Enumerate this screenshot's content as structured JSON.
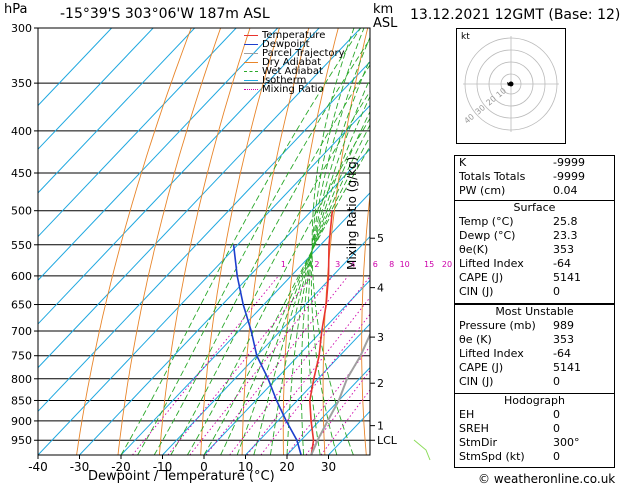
{
  "header": {
    "pressure_unit": "hPa",
    "location": "-15°39'S  303°06'W  187m  ASL",
    "height_unit_top": "km",
    "height_unit_bottom": "ASL",
    "datetime": "13.12.2021  12GMT  (Base: 12)"
  },
  "chart_data": {
    "type": "line",
    "title": "",
    "xlabel": "Dewpoint / Temperature (°C)",
    "ylabel": "hPa",
    "right_axis_label": "Mixing Ratio (g/kg)",
    "x_ticks": [
      -40,
      -30,
      -20,
      -10,
      0,
      10,
      20,
      30
    ],
    "pressure_levels": [
      300,
      350,
      400,
      450,
      500,
      550,
      600,
      650,
      700,
      750,
      800,
      850,
      900,
      950
    ],
    "km_ticks": [
      {
        "km": "1",
        "p": 912
      },
      {
        "km": "2",
        "p": 810
      },
      {
        "km": "3",
        "p": 712
      },
      {
        "km": "4",
        "p": 620
      },
      {
        "km": "5",
        "p": 540
      },
      {
        "km": "LCL",
        "p": 950
      }
    ],
    "mixing_ratio_labels": [
      "1",
      "2",
      "3",
      "4",
      "6",
      "8",
      "10",
      "15",
      "20",
      "25"
    ],
    "legend": [
      "Temperature",
      "Dewpoint",
      "Parcel Trajectory",
      "Dry Adiabat",
      "Wet Adiabat",
      "Isotherm",
      "Mixing Ratio"
    ],
    "colors": {
      "temperature": "#e8342e",
      "dewpoint": "#1d3fcc",
      "parcel": "#a0a0a0",
      "dry_adiabat": "#e8852a",
      "wet_adiabat": "#2aa82a",
      "isotherm": "#1fa8e0",
      "mixing_ratio": "#cc00aa"
    },
    "series": [
      {
        "name": "Temperature",
        "points": [
          [
            25.8,
            989
          ],
          [
            23,
            950
          ],
          [
            18,
            900
          ],
          [
            13,
            850
          ],
          [
            9,
            800
          ],
          [
            5,
            750
          ],
          [
            0,
            700
          ],
          [
            -5,
            650
          ],
          [
            -11,
            600
          ],
          [
            -18,
            550
          ],
          [
            -25,
            500
          ]
        ]
      },
      {
        "name": "Dewpoint",
        "points": [
          [
            23.3,
            989
          ],
          [
            19,
            950
          ],
          [
            12,
            900
          ],
          [
            5,
            850
          ],
          [
            -2,
            800
          ],
          [
            -10,
            750
          ],
          [
            -17,
            700
          ],
          [
            -25,
            650
          ],
          [
            -33,
            600
          ],
          [
            -41,
            550
          ]
        ]
      },
      {
        "name": "Parcel Trajectory",
        "points": [
          [
            25.8,
            989
          ],
          [
            24,
            950
          ],
          [
            22,
            900
          ],
          [
            20,
            850
          ],
          [
            17,
            800
          ],
          [
            15,
            750
          ],
          [
            12,
            700
          ],
          [
            10,
            650
          ],
          [
            8,
            600
          ],
          [
            5,
            550
          ],
          [
            2,
            500
          ],
          [
            -2,
            450
          ],
          [
            -6,
            400
          ],
          [
            -10,
            350
          ],
          [
            -14,
            310
          ]
        ]
      }
    ]
  },
  "indices": [
    {
      "label": "K",
      "value": "-9999"
    },
    {
      "label": "Totals Totals",
      "value": "-9999"
    },
    {
      "label": "PW (cm)",
      "value": "0.04"
    }
  ],
  "surface": {
    "title": "Surface",
    "rows": [
      {
        "label": "Temp (°C)",
        "value": "25.8"
      },
      {
        "label": "Dewp (°C)",
        "value": "23.3"
      },
      {
        "label": "θe(K)",
        "value": "353"
      },
      {
        "label": "Lifted Index",
        "value": "-64"
      },
      {
        "label": "CAPE (J)",
        "value": "5141"
      },
      {
        "label": "CIN (J)",
        "value": "0"
      }
    ]
  },
  "most_unstable": {
    "title": "Most Unstable",
    "rows": [
      {
        "label": "Pressure (mb)",
        "value": "989"
      },
      {
        "label": "θe (K)",
        "value": "353"
      },
      {
        "label": "Lifted Index",
        "value": "-64"
      },
      {
        "label": "CAPE (J)",
        "value": "5141"
      },
      {
        "label": "CIN (J)",
        "value": "0"
      }
    ]
  },
  "hodograph": {
    "title": "Hodograph",
    "rows": [
      {
        "label": "EH",
        "value": "0"
      },
      {
        "label": "SREH",
        "value": "0"
      },
      {
        "label": "StmDir",
        "value": "300°"
      },
      {
        "label": "StmSpd (kt)",
        "value": "0"
      }
    ]
  },
  "hodo_plot": {
    "unit": "kt",
    "ring_labels": [
      "10",
      "20",
      "30",
      "40"
    ]
  },
  "footer": {
    "copyright": "© weatheronline.co.uk"
  }
}
